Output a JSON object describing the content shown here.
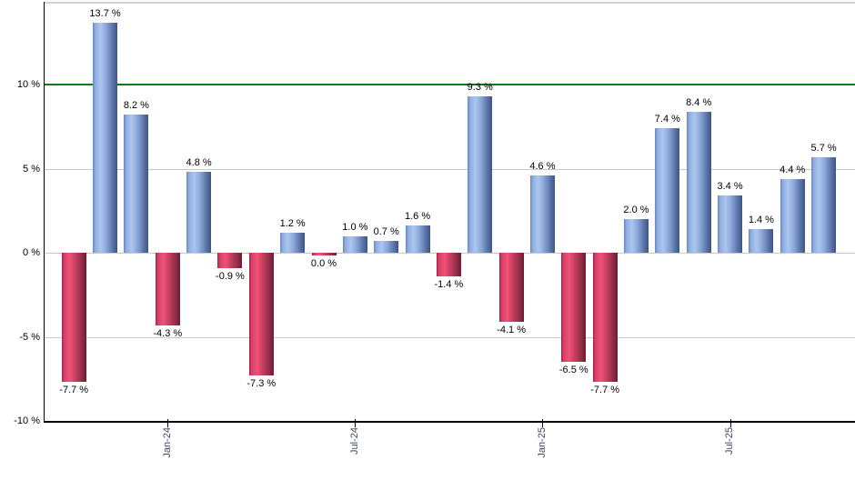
{
  "chart_data": {
    "type": "bar",
    "title": "",
    "ylabel": "",
    "xlabel": "",
    "unit": "%",
    "ylim": [
      -10,
      14.9
    ],
    "grid": true,
    "legend": "none",
    "bars": [
      {
        "value": -7.7,
        "label": "-7.7 %",
        "color": "red"
      },
      {
        "value": 13.7,
        "label": "13.7 %",
        "color": "blue"
      },
      {
        "value": 8.2,
        "label": "8.2 %",
        "color": "blue"
      },
      {
        "value": -4.3,
        "label": "-4.3 %",
        "color": "red"
      },
      {
        "value": 4.8,
        "label": "4.8 %",
        "color": "blue"
      },
      {
        "value": -0.9,
        "label": "-0.9 %",
        "color": "red"
      },
      {
        "value": -7.3,
        "label": "-7.3 %",
        "color": "red"
      },
      {
        "value": 1.2,
        "label": "1.2 %",
        "color": "blue"
      },
      {
        "value": 0.0,
        "label": "0.0 %",
        "color": "red"
      },
      {
        "value": 1.0,
        "label": "1.0 %",
        "color": "blue"
      },
      {
        "value": 0.7,
        "label": "0.7 %",
        "color": "blue"
      },
      {
        "value": 1.6,
        "label": "1.6 %",
        "color": "blue"
      },
      {
        "value": -1.4,
        "label": "-1.4 %",
        "color": "red"
      },
      {
        "value": 9.3,
        "label": "9.3 %",
        "color": "blue"
      },
      {
        "value": -4.1,
        "label": "-4.1 %",
        "color": "red"
      },
      {
        "value": 4.6,
        "label": "4.6 %",
        "color": "blue"
      },
      {
        "value": -6.5,
        "label": "-6.5 %",
        "color": "red"
      },
      {
        "value": -7.7,
        "label": "-7.7 %",
        "color": "red"
      },
      {
        "value": 2.0,
        "label": "2.0 %",
        "color": "blue"
      },
      {
        "value": 7.4,
        "label": "7.4 %",
        "color": "blue"
      },
      {
        "value": 8.4,
        "label": "8.4 %",
        "color": "blue"
      },
      {
        "value": 3.4,
        "label": "3.4 %",
        "color": "blue"
      },
      {
        "value": 1.4,
        "label": "1.4 %",
        "color": "blue"
      },
      {
        "value": 4.4,
        "label": "4.4 %",
        "color": "blue"
      },
      {
        "value": 5.7,
        "label": "5.7 %",
        "color": "blue"
      }
    ],
    "x_ticks": [
      {
        "label": "Jan-24",
        "bar_index": 3
      },
      {
        "label": "Jul-24",
        "bar_index": 9
      },
      {
        "label": "Jan-25",
        "bar_index": 15
      },
      {
        "label": "Jul-25",
        "bar_index": 21
      }
    ],
    "y_ticks": [
      {
        "value": 10,
        "label": "10 %"
      },
      {
        "value": 5,
        "label": "5 %"
      },
      {
        "value": 0,
        "label": "0 %"
      },
      {
        "value": -5,
        "label": "-5 %"
      },
      {
        "value": -10,
        "label": "-10 %"
      }
    ],
    "reference_line": {
      "value": 10,
      "color": "#0b7d0b"
    },
    "colors": {
      "positive_bar_light": "#adc6ee",
      "positive_bar_dark": "#3c5383",
      "negative_bar_light": "#ee5377",
      "negative_bar_dark": "#6d1b34",
      "gridline": "#c9c9c9",
      "axis": "#000000",
      "x_tick_text": "#3b4862",
      "value_text": "#000000"
    }
  }
}
